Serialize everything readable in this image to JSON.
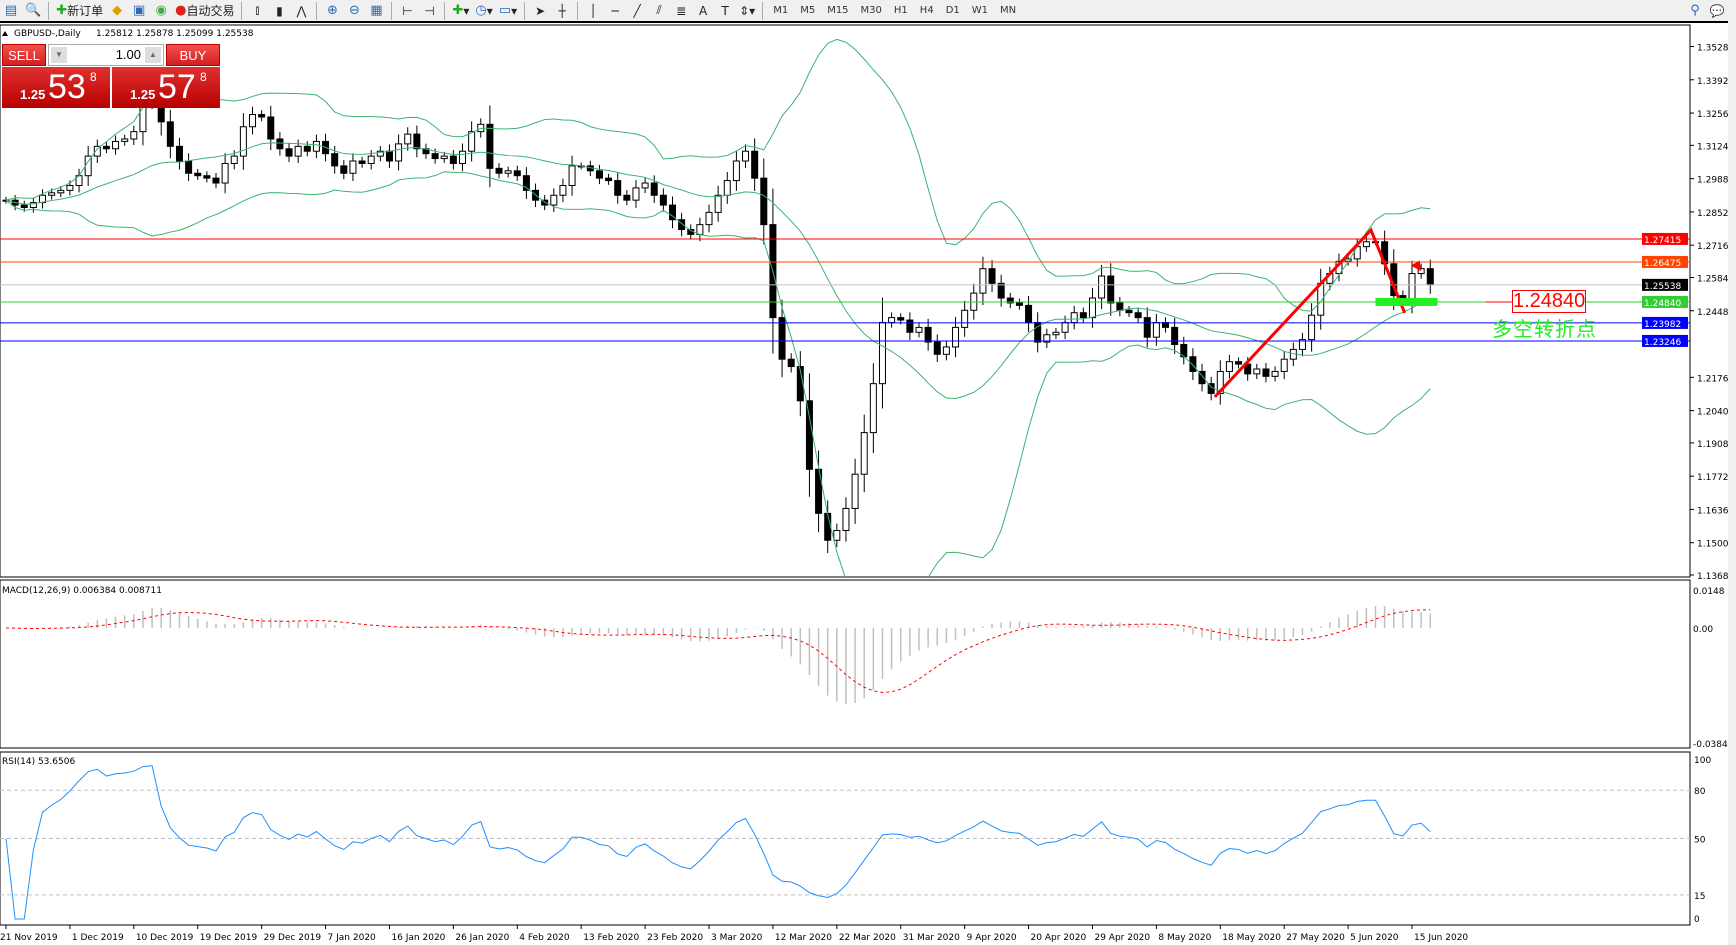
{
  "toolbar": {
    "new_order": "新订单",
    "auto_trading": "自动交易",
    "timeframes": [
      "M1",
      "M5",
      "M15",
      "M30",
      "H1",
      "H4",
      "D1",
      "W1",
      "MN"
    ]
  },
  "chart_header": {
    "symbol": "GBPUSD-,Daily",
    "ohlc": "1.25812 1.25878 1.25099 1.25538"
  },
  "trade_panel": {
    "sell_label": "SELL",
    "buy_label": "BUY",
    "lot": "1.00",
    "sell_prefix": "1.25",
    "sell_big": "53",
    "sell_sup": "8",
    "buy_prefix": "1.25",
    "buy_big": "57",
    "buy_sup": "8"
  },
  "annotation": {
    "level": "1.24840",
    "text": "多空转折点"
  },
  "indicators": {
    "macd_label": "MACD(12,26,9) 0.006384 0.008711",
    "rsi_label": "RSI(14) 53.6506"
  },
  "chart_data": {
    "type": "candlestick",
    "symbol": "GBPUSD",
    "timeframe": "Daily",
    "price_range": [
      1.1368,
      1.3528
    ],
    "price_ticks": [
      "1.35280",
      "1.33920",
      "1.32560",
      "1.31240",
      "1.29880",
      "1.28520",
      "1.27160",
      "1.25840",
      "1.24480",
      "1.21760",
      "1.20400",
      "1.19080",
      "1.17720",
      "1.16360",
      "1.15000",
      "1.13680"
    ],
    "horizontal_lines": [
      {
        "price": "1.27415",
        "color": "#ff0000"
      },
      {
        "price": "1.26475",
        "color": "#ff4500"
      },
      {
        "price": "1.25538",
        "color": "#000000",
        "line": "#c0c0c0"
      },
      {
        "price": "1.24840",
        "color": "#32cd32"
      },
      {
        "price": "1.23982",
        "color": "#0000ff"
      },
      {
        "price": "1.23246",
        "color": "#0000ff"
      }
    ],
    "date_labels": [
      "21 Nov 2019",
      "1 Dec 2019",
      "10 Dec 2019",
      "19 Dec 2019",
      "29 Dec 2019",
      "7 Jan 2020",
      "16 Jan 2020",
      "26 Jan 2020",
      "4 Feb 2020",
      "13 Feb 2020",
      "23 Feb 2020",
      "3 Mar 2020",
      "12 Mar 2020",
      "22 Mar 2020",
      "31 Mar 2020",
      "9 Apr 2020",
      "20 Apr 2020",
      "29 Apr 2020",
      "8 May 2020",
      "18 May 2020",
      "27 May 2020",
      "5 Jun 2020",
      "15 Jun 2020"
    ],
    "closes": [
      1.29,
      1.288,
      1.287,
      1.289,
      1.292,
      1.293,
      1.294,
      1.296,
      1.3,
      1.308,
      1.312,
      1.311,
      1.314,
      1.315,
      1.318,
      1.33,
      1.334,
      1.322,
      1.312,
      1.306,
      1.301,
      1.3,
      1.299,
      1.297,
      1.305,
      1.308,
      1.32,
      1.325,
      1.324,
      1.315,
      1.311,
      1.308,
      1.312,
      1.31,
      1.314,
      1.309,
      1.304,
      1.301,
      1.306,
      1.305,
      1.308,
      1.31,
      1.306,
      1.313,
      1.317,
      1.311,
      1.309,
      1.307,
      1.308,
      1.305,
      1.31,
      1.318,
      1.321,
      1.303,
      1.301,
      1.302,
      1.3,
      1.294,
      1.29,
      1.288,
      1.292,
      1.296,
      1.304,
      1.304,
      1.302,
      1.299,
      1.298,
      1.292,
      1.29,
      1.295,
      1.297,
      1.292,
      1.288,
      1.282,
      1.278,
      1.276,
      1.28,
      1.285,
      1.292,
      1.298,
      1.306,
      1.31,
      1.299,
      1.28,
      1.242,
      1.225,
      1.222,
      1.208,
      1.18,
      1.162,
      1.151,
      1.155,
      1.164,
      1.178,
      1.195,
      1.215,
      1.24,
      1.242,
      1.241,
      1.236,
      1.238,
      1.232,
      1.227,
      1.23,
      1.238,
      1.245,
      1.252,
      1.262,
      1.256,
      1.25,
      1.248,
      1.247,
      1.24,
      1.232,
      1.235,
      1.236,
      1.24,
      1.244,
      1.242,
      1.25,
      1.259,
      1.248,
      1.245,
      1.244,
      1.242,
      1.234,
      1.24,
      1.238,
      1.231,
      1.226,
      1.22,
      1.215,
      1.211,
      1.22,
      1.224,
      1.223,
      1.219,
      1.221,
      1.218,
      1.22,
      1.225,
      1.229,
      1.233,
      1.243,
      1.256,
      1.26,
      1.265,
      1.266,
      1.271,
      1.273,
      1.273,
      1.264,
      1.251,
      1.249,
      1.26,
      1.262,
      1.2554
    ],
    "macd_range": [
      -0.038415,
      0.0148
    ],
    "macd_ticks": [
      "0.0148",
      "0.00",
      "-0.038415"
    ],
    "rsi_levels": [
      "100",
      "80",
      "50",
      "15",
      "0"
    ],
    "colors": {
      "bands": "#3cb371",
      "macd_hist": "#c0c0c0",
      "macd_signal": "#ff0000",
      "rsi": "#1e90ff",
      "trendline": "#ff0000"
    }
  }
}
